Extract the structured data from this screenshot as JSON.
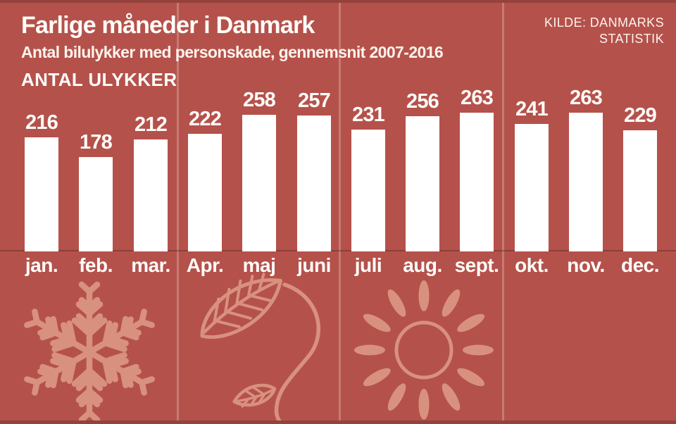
{
  "header": {
    "title": "Farlige måneder i Danmark",
    "subtitle": "Antal bilulykker med personskade, gennemsnit 2007-2016",
    "axis_label": "ANTAL ULYKKER",
    "source_line1": "KILDE: DANMARKS",
    "source_line2": "STATISTIK"
  },
  "chart_data": {
    "type": "bar",
    "title": "Farlige måneder i Danmark",
    "subtitle": "Antal bilulykker med personskade, gennemsnit 2007-2016",
    "ylabel": "ANTAL ULYKKER",
    "source": "KILDE: DANMARKS STATISTIK",
    "categories": [
      "jan.",
      "feb.",
      "mar.",
      "Apr.",
      "maj",
      "juni",
      "juli",
      "aug.",
      "sept.",
      "okt.",
      "nov.",
      "dec."
    ],
    "values": [
      216,
      178,
      212,
      222,
      258,
      257,
      231,
      256,
      263,
      241,
      263,
      229
    ],
    "ylim": [
      0,
      270
    ],
    "grid": false,
    "legend_position": "none",
    "data_labels": true,
    "season_panels": [
      {
        "months": "jan-mar",
        "icon": "snowflake-icon"
      },
      {
        "months": "apr-jun",
        "icon": "sprout-leaf-icon"
      },
      {
        "months": "jul-sep",
        "icon": "sun-icon"
      },
      {
        "months": "okt-dec",
        "icon": "none"
      }
    ]
  },
  "colors": {
    "background": "#b5514b",
    "bar": "#ffffff",
    "text": "#ffffff",
    "decoration": "#d9917f",
    "border_strip": "#93423c",
    "panel_divider": "#c8827a"
  }
}
